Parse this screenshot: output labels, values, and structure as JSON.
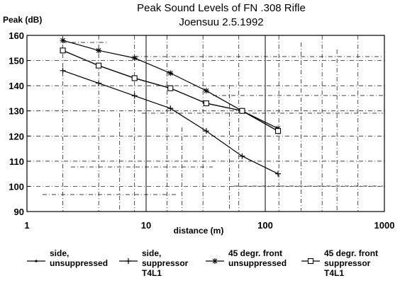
{
  "chart_data": {
    "type": "line",
    "title": "Peak Sound Levels of FN .308 Rifle",
    "subtitle": "Joensuu 2.5.1992",
    "xlabel": "distance (m)",
    "ylabel": "Peak (dB)",
    "xscale": "log",
    "xlim": [
      1,
      1000
    ],
    "ylim": [
      90,
      160
    ],
    "x_ticks": [
      "1",
      "10",
      "100",
      "1000"
    ],
    "y_ticks": [
      "90",
      "100",
      "110",
      "120",
      "130",
      "140",
      "150",
      "160"
    ],
    "grid": "irregular dash-dot lines",
    "legend_position": "bottom",
    "series": [
      {
        "name": "side,\nunsuppressed",
        "marker": "dot",
        "x": [
          2,
          4,
          8,
          16,
          32,
          64,
          128
        ],
        "y": [
          154,
          148,
          143,
          139,
          133,
          130,
          122
        ]
      },
      {
        "name": "side,\nsuppressor\nT4L1",
        "marker": "plus",
        "x": [
          2,
          4,
          8,
          16,
          32,
          64,
          128
        ],
        "y": [
          146,
          141,
          136,
          131,
          122,
          112,
          105
        ]
      },
      {
        "name": "45 degr. front\nunsuppressed",
        "marker": "star",
        "x": [
          2,
          4,
          8,
          16,
          32,
          64,
          128
        ],
        "y": [
          158,
          154,
          151,
          145,
          138,
          130,
          123
        ]
      },
      {
        "name": "45 degr. front\nsuppressor\nT4L1",
        "marker": "square",
        "x": [
          2,
          4,
          8,
          16,
          32,
          64,
          128
        ],
        "y": [
          154,
          148,
          143,
          139,
          133,
          130,
          122
        ]
      }
    ]
  }
}
